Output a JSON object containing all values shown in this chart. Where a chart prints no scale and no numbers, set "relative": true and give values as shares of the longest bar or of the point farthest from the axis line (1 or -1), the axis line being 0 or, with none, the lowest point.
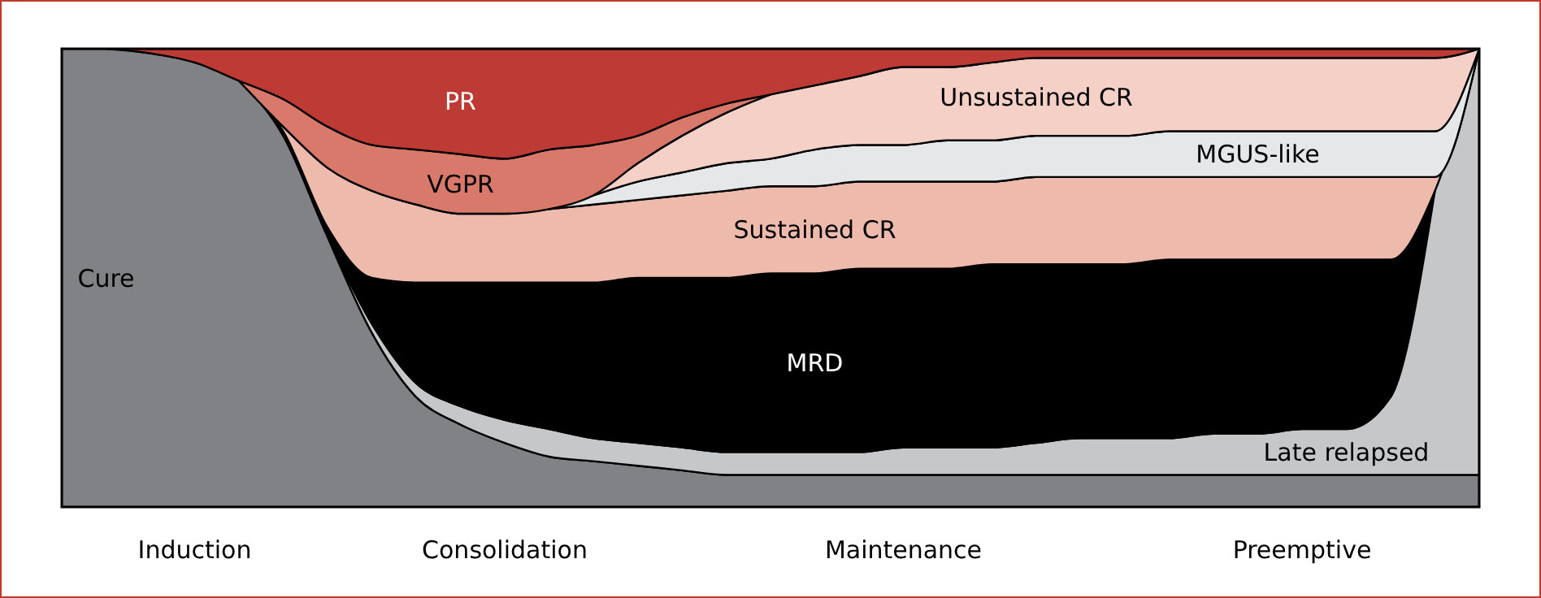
{
  "chart_data": {
    "type": "area",
    "relative": true,
    "stacked": true,
    "categories": [
      null,
      null,
      null,
      "Induction",
      null,
      null,
      null,
      null,
      null,
      null,
      "Consolidation",
      null,
      null,
      null,
      null,
      null,
      null,
      null,
      null,
      "Maintenance",
      null,
      null,
      null,
      null,
      null,
      null,
      null,
      null,
      "Preemptive",
      null,
      null,
      null,
      null
    ],
    "series": [
      {
        "name": "Cure",
        "color": "#808285",
        "values": [
          1,
          1,
          0.99,
          0.97,
          0.93,
          0.81,
          0.59,
          0.38,
          0.24,
          0.18,
          0.14,
          0.11,
          0.1,
          0.09,
          0.08,
          0.07,
          0.07,
          0.07,
          0.07,
          0.07,
          0.07,
          0.07,
          0.07,
          0.07,
          0.07,
          0.07,
          0.07,
          0.07,
          0.07,
          0.07,
          0.07,
          0.07,
          0.07
        ]
      },
      {
        "name": "Late relapsed",
        "color": "#c6c7c9",
        "values": [
          null,
          null,
          null,
          null,
          null,
          null,
          0,
          0.02,
          0.03,
          0.04,
          0.05,
          0.06,
          0.05,
          0.05,
          0.05,
          0.05,
          0.05,
          0.05,
          0.05,
          0.06,
          0.06,
          0.06,
          0.07,
          0.08,
          0.08,
          0.08,
          0.09,
          0.09,
          0.1,
          0.1,
          0.17,
          0.62,
          0.93
        ]
      },
      {
        "name": "MRD",
        "color": "#000000",
        "values": [
          null,
          null,
          null,
          null,
          0,
          0.01,
          0.02,
          0.1,
          0.22,
          0.27,
          0.3,
          0.32,
          0.34,
          0.36,
          0.37,
          0.38,
          0.39,
          0.39,
          0.4,
          0.39,
          0.39,
          0.4,
          0.39,
          0.38,
          0.38,
          0.39,
          0.38,
          0.38,
          0.37,
          0.37,
          0.3,
          0,
          null
        ]
      },
      {
        "name": "Sustained CR",
        "color": "#eebaac",
        "values": [
          null,
          null,
          null,
          null,
          0,
          0.01,
          0.13,
          0.19,
          0.17,
          0.15,
          0.15,
          0.16,
          0.17,
          0.17,
          0.18,
          0.19,
          0.19,
          0.19,
          0.19,
          0.19,
          0.19,
          0.18,
          0.19,
          0.19,
          0.19,
          0.18,
          0.18,
          0.18,
          0.18,
          0.18,
          0.18,
          0.03,
          0
        ]
      },
      {
        "name": "MGUS-like",
        "color": "#e6e7e8",
        "values": [
          null,
          null,
          null,
          null,
          null,
          null,
          null,
          null,
          null,
          null,
          null,
          0,
          0.02,
          0.04,
          0.05,
          0.06,
          0.06,
          0.08,
          0.08,
          0.08,
          0.09,
          0.09,
          0.09,
          0.09,
          0.09,
          0.1,
          0.1,
          0.1,
          0.1,
          0.1,
          0.1,
          0.1,
          0
        ]
      },
      {
        "name": "Unsustained CR",
        "color": "#f5d0c6",
        "values": [
          null,
          null,
          null,
          null,
          null,
          null,
          null,
          null,
          null,
          null,
          null,
          null,
          0,
          0.04,
          0.08,
          0.11,
          0.14,
          0.14,
          0.15,
          0.17,
          0.16,
          0.17,
          0.17,
          0.17,
          0.17,
          0.16,
          0.16,
          0.16,
          0.16,
          0.16,
          0.16,
          0.16,
          0
        ]
      },
      {
        "name": "VGPR",
        "color": "#d9796b",
        "values": [
          null,
          null,
          null,
          null,
          0,
          0.06,
          0.09,
          0.1,
          0.12,
          0.13,
          0.12,
          0.13,
          0.11,
          0.06,
          0.04,
          0.02,
          0,
          null,
          null,
          null,
          null,
          null,
          null,
          null,
          null,
          null,
          null,
          null,
          null,
          null,
          null,
          null,
          null
        ]
      },
      {
        "name": "PR",
        "color": "#be3a34",
        "values": [
          null,
          0,
          0.01,
          0.03,
          0.07,
          0.11,
          0.17,
          0.21,
          0.22,
          0.23,
          0.24,
          0.22,
          0.21,
          0.19,
          0.15,
          0.12,
          0.1,
          0.08,
          0.06,
          0.04,
          0.04,
          0.03,
          0.02,
          0.02,
          0.02,
          0.02,
          0.02,
          0.02,
          0.02,
          0.02,
          0.02,
          0.02,
          0
        ]
      }
    ]
  }
}
